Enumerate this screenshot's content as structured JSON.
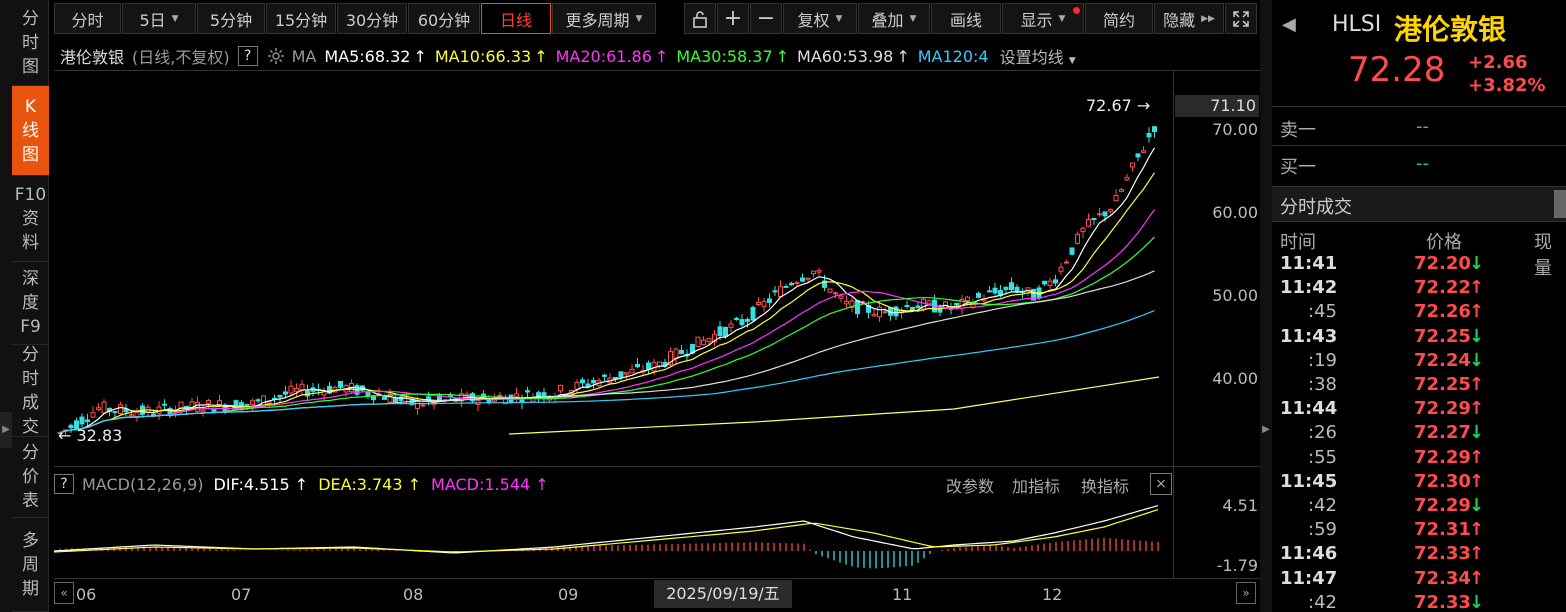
{
  "sidebar": {
    "tabs": [
      {
        "label": "分时图",
        "chars": [
          "分",
          "时",
          "图"
        ],
        "active": false
      },
      {
        "label": "K线图",
        "chars": [
          "K",
          "线",
          "图"
        ],
        "active": true
      },
      {
        "label": "F10资料",
        "chars": [
          "F10",
          "资",
          "料"
        ],
        "active": false
      },
      {
        "label": "深度F9",
        "chars": [
          "深",
          "度",
          "F9"
        ],
        "active": false
      },
      {
        "label": "分时成交",
        "chars": [
          "分",
          "时",
          "成",
          "交"
        ],
        "active": false
      },
      {
        "label": "分价表",
        "chars": [
          "分",
          "价",
          "表"
        ],
        "active": false
      },
      {
        "label": "多周期",
        "chars": [
          "多",
          "周",
          "期"
        ],
        "active": false
      }
    ]
  },
  "toolbar": {
    "period_buttons": [
      "分时",
      "5日",
      "5分钟",
      "15分钟",
      "30分钟",
      "60分钟",
      "日线",
      "更多周期"
    ],
    "active_period": "日线",
    "lock_icon": "lock-icon",
    "zoom_in": "+",
    "zoom_out": "−",
    "fuquan": "复权",
    "diejia": "叠加",
    "huaxian": "画线",
    "xianshi": "显示",
    "jianyue": "简约",
    "yincang": "隐藏",
    "expand_icon": "expand-icon"
  },
  "ma_legend": {
    "name": "港伦敦银",
    "mode": "(日线,不复权)",
    "help": "?",
    "ma_label": "MA",
    "items": [
      {
        "text": "MA5:68.32",
        "arrow": "↑",
        "color": "#ffffff"
      },
      {
        "text": "MA10:66.33",
        "arrow": "↑",
        "color": "#ffff33"
      },
      {
        "text": "MA20:61.86",
        "arrow": "↑",
        "color": "#ff33ff"
      },
      {
        "text": "MA30:58.37",
        "arrow": "↑",
        "color": "#33ff33"
      },
      {
        "text": "MA60:53.98",
        "arrow": "↑",
        "color": "#dddddd"
      },
      {
        "text": "MA120:4",
        "arrow": "",
        "color": "#33ccff"
      }
    ],
    "settings": "设置均线"
  },
  "price_axis": {
    "labels": [
      "70.00",
      "60.00",
      "50.00",
      "40.00"
    ],
    "last_price": "71.10",
    "high_marker": "72.67",
    "low_marker": "32.83"
  },
  "macd": {
    "help": "?",
    "title": "MACD(12,26,9)",
    "dif": "DIF:4.515",
    "dea": "DEA:3.743",
    "macd": "MACD:1.544",
    "dif_color": "#ffffff",
    "dea_color": "#ffff33",
    "macd_color": "#ff33ff",
    "buttons": [
      "改参数",
      "加指标",
      "换指标"
    ],
    "close": "×",
    "axis_top": "4.51",
    "axis_bottom": "-1.79"
  },
  "time_axis": {
    "labels": [
      "06",
      "07",
      "08",
      "09",
      "11",
      "12"
    ],
    "cursor": "2025/09/19/五",
    "left_btn": "«",
    "right_btn": "»"
  },
  "quote": {
    "code": "HLSI",
    "name": "港伦敦银",
    "price": "72.28",
    "change": "+2.66",
    "change_pct": "+3.82%",
    "sell1_label": "卖一",
    "sell1_value": "--",
    "buy1_label": "买一",
    "buy1_value": "--",
    "trades_title": "分时成交",
    "headers": [
      "时间",
      "价格",
      "现量"
    ],
    "trades": [
      {
        "time": "11:41",
        "price": "72.20",
        "dir": "down"
      },
      {
        "time": "11:42",
        "price": "72.22",
        "dir": "up"
      },
      {
        "time": ":45",
        "price": "72.26",
        "dir": "up"
      },
      {
        "time": "11:43",
        "price": "72.25",
        "dir": "down"
      },
      {
        "time": ":19",
        "price": "72.24",
        "dir": "down"
      },
      {
        "time": ":38",
        "price": "72.25",
        "dir": "up"
      },
      {
        "time": "11:44",
        "price": "72.29",
        "dir": "up"
      },
      {
        "time": ":26",
        "price": "72.27",
        "dir": "down"
      },
      {
        "time": ":55",
        "price": "72.29",
        "dir": "up"
      },
      {
        "time": "11:45",
        "price": "72.30",
        "dir": "up"
      },
      {
        "time": ":42",
        "price": "72.29",
        "dir": "down"
      },
      {
        "time": ":59",
        "price": "72.31",
        "dir": "up"
      },
      {
        "time": "11:46",
        "price": "72.33",
        "dir": "up"
      },
      {
        "time": "11:47",
        "price": "72.34",
        "dir": "up"
      },
      {
        "time": ":42",
        "price": "72.33",
        "dir": "down"
      }
    ]
  }
}
